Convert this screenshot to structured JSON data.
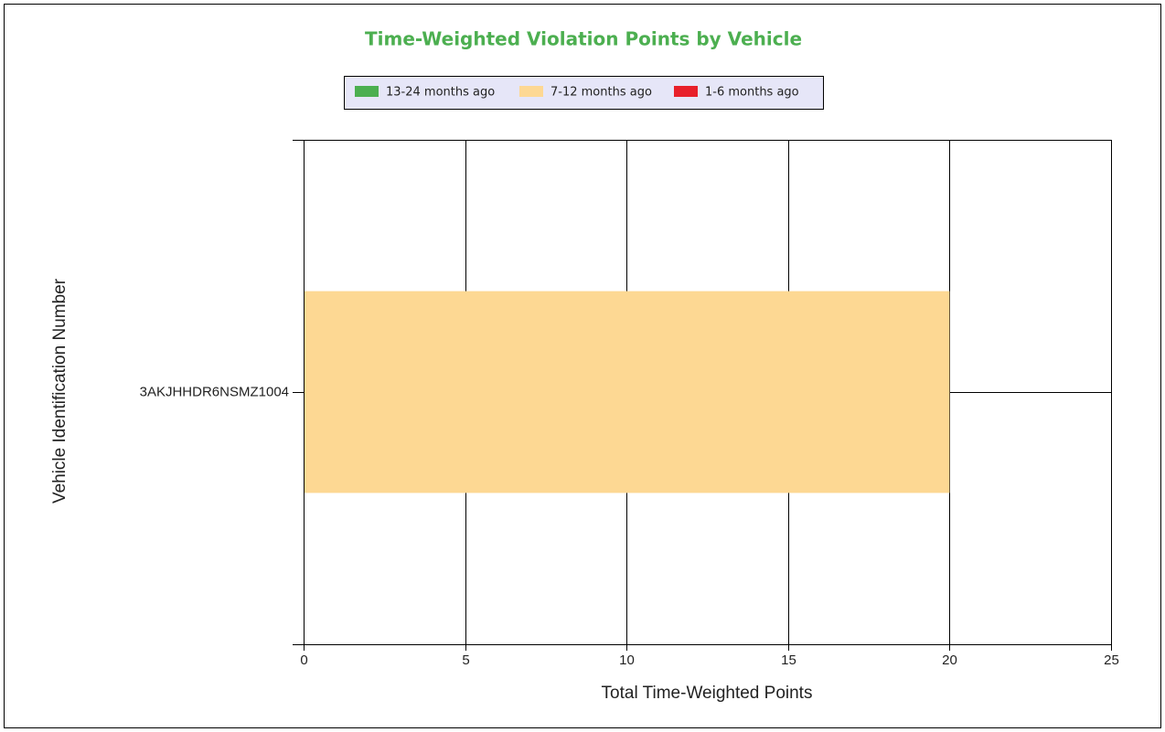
{
  "chart_data": {
    "type": "stacked-bar-horizontal",
    "title": "Time-Weighted Violation Points by Vehicle",
    "categories": [
      "3AKJHHDR6NSMZ1004"
    ],
    "series": [
      {
        "name": "13-24 months ago",
        "color": "#4caf50",
        "values": [
          0
        ]
      },
      {
        "name": "7-12 months ago",
        "color": "#fdd893",
        "values": [
          20
        ]
      },
      {
        "name": "1-6 months ago",
        "color": "#e8202a",
        "values": [
          0
        ]
      }
    ],
    "xlim": [
      0,
      25
    ],
    "xticks": [
      0,
      5,
      10,
      15,
      20,
      25
    ],
    "x_label": "Total Time-Weighted Points",
    "y_label": "Vehicle Identification Number",
    "grid": true,
    "legend": "top"
  }
}
